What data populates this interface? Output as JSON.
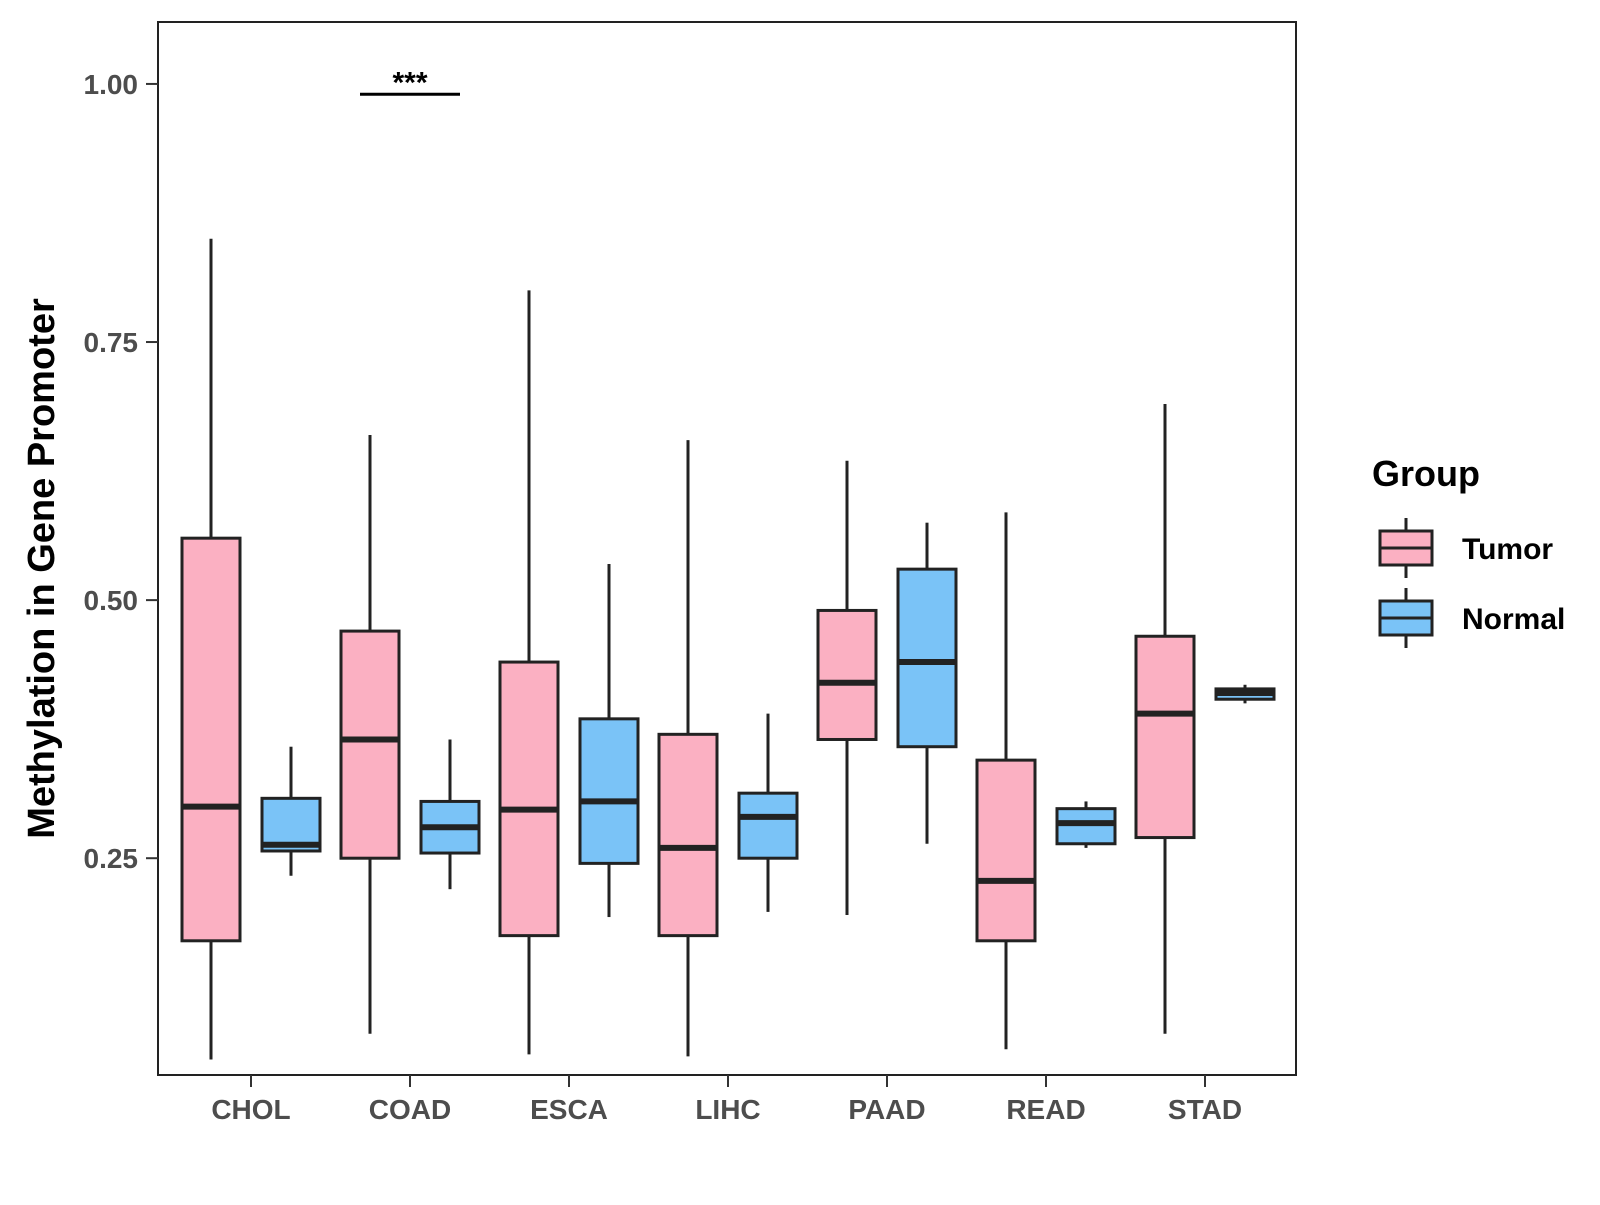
{
  "chart_data": {
    "type": "boxplot",
    "title": "",
    "xlabel": "",
    "ylabel": "Methylation in Gene Promoter",
    "ylim": [
      0.04,
      1.06
    ],
    "yticks": [
      0.25,
      0.5,
      0.75,
      1.0
    ],
    "ytick_labels": [
      "0.25",
      "0.50",
      "0.75",
      "1.00"
    ],
    "categories": [
      "CHOL",
      "COAD",
      "ESCA",
      "LIHC",
      "PAAD",
      "READ",
      "STAD"
    ],
    "legend": {
      "title": "Group",
      "position": "right",
      "entries": [
        {
          "name": "Tumor",
          "color": "#fbb0c2"
        },
        {
          "name": "Normal",
          "color": "#7ac3f7"
        }
      ]
    },
    "series": [
      {
        "name": "Tumor",
        "color": "#fbb0c2",
        "boxes": [
          {
            "category": "CHOL",
            "min": 0.055,
            "q1": 0.17,
            "median": 0.3,
            "q3": 0.56,
            "max": 0.85
          },
          {
            "category": "COAD",
            "min": 0.08,
            "q1": 0.25,
            "median": 0.365,
            "q3": 0.47,
            "max": 0.66
          },
          {
            "category": "ESCA",
            "min": 0.06,
            "q1": 0.175,
            "median": 0.297,
            "q3": 0.44,
            "max": 0.8
          },
          {
            "category": "LIHC",
            "min": 0.058,
            "q1": 0.175,
            "median": 0.26,
            "q3": 0.37,
            "max": 0.655
          },
          {
            "category": "PAAD",
            "min": 0.195,
            "q1": 0.365,
            "median": 0.42,
            "q3": 0.49,
            "max": 0.635
          },
          {
            "category": "READ",
            "min": 0.065,
            "q1": 0.17,
            "median": 0.228,
            "q3": 0.345,
            "max": 0.585
          },
          {
            "category": "STAD",
            "min": 0.08,
            "q1": 0.27,
            "median": 0.39,
            "q3": 0.465,
            "max": 0.69
          }
        ]
      },
      {
        "name": "Normal",
        "color": "#7ac3f7",
        "boxes": [
          {
            "category": "CHOL",
            "min": 0.233,
            "q1": 0.257,
            "median": 0.263,
            "q3": 0.308,
            "max": 0.358
          },
          {
            "category": "COAD",
            "min": 0.22,
            "q1": 0.255,
            "median": 0.28,
            "q3": 0.305,
            "max": 0.365
          },
          {
            "category": "ESCA",
            "min": 0.193,
            "q1": 0.245,
            "median": 0.305,
            "q3": 0.385,
            "max": 0.535
          },
          {
            "category": "LIHC",
            "min": 0.198,
            "q1": 0.25,
            "median": 0.29,
            "q3": 0.313,
            "max": 0.39
          },
          {
            "category": "PAAD",
            "min": 0.264,
            "q1": 0.358,
            "median": 0.44,
            "q3": 0.53,
            "max": 0.575
          },
          {
            "category": "READ",
            "min": 0.26,
            "q1": 0.264,
            "median": 0.284,
            "q3": 0.298,
            "max": 0.305
          },
          {
            "category": "STAD",
            "min": 0.4,
            "q1": 0.404,
            "median": 0.41,
            "q3": 0.414,
            "max": 0.418
          }
        ]
      }
    ],
    "annotations": [
      {
        "text": "***",
        "category": "COAD",
        "y": 0.99
      }
    ]
  }
}
